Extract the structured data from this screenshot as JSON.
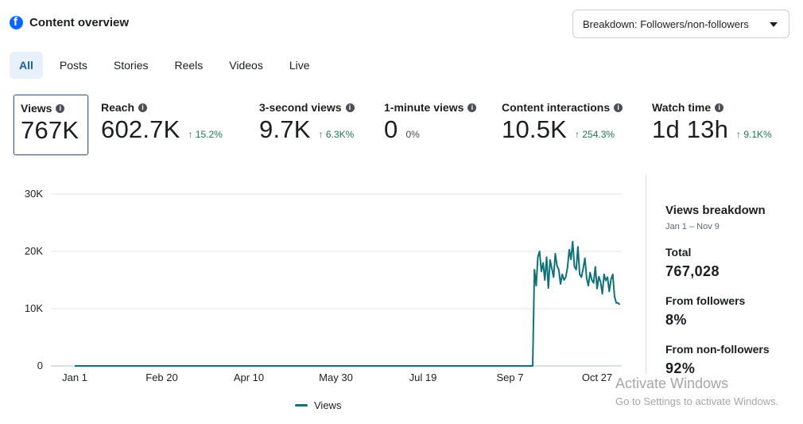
{
  "header": {
    "title": "Content overview",
    "icon": "facebook-icon",
    "brand_color": "#0866ff"
  },
  "breakdown": {
    "label": "Breakdown: Followers/non-followers"
  },
  "tabs": [
    {
      "label": "All",
      "active": true
    },
    {
      "label": "Posts"
    },
    {
      "label": "Stories"
    },
    {
      "label": "Reels"
    },
    {
      "label": "Videos"
    },
    {
      "label": "Live"
    }
  ],
  "metrics": [
    {
      "label": "Views",
      "value": "767K",
      "change": ""
    },
    {
      "label": "Reach",
      "value": "602.7K",
      "change": "↑ 15.2%"
    },
    {
      "label": "3-second views",
      "value": "9.7K",
      "change": "↑ 6.3K%"
    },
    {
      "label": "1-minute views",
      "value": "0",
      "change": "0%"
    },
    {
      "label": "Content interactions",
      "value": "10.5K",
      "change": "↑ 254.3%"
    },
    {
      "label": "Watch time",
      "value": "1d 13h",
      "change": "↑ 9.1K%"
    }
  ],
  "chart_data": {
    "type": "line",
    "title": "",
    "xlabel": "",
    "ylabel": "",
    "ylim": [
      0,
      30000
    ],
    "y_ticks": [
      "0",
      "10K",
      "20K",
      "30K"
    ],
    "x_ticks": [
      "Jan 1",
      "Feb 20",
      "Apr 10",
      "May 30",
      "Jul 19",
      "Sep 7",
      "Oct 27"
    ],
    "grid": true,
    "legend": "bottom",
    "line_color": "#0f7279",
    "series": [
      {
        "name": "Views",
        "x": [
          "2024-01-01",
          "2024-09-20",
          "2024-09-21",
          "2024-09-22",
          "2024-09-23",
          "2024-09-24",
          "2024-09-25",
          "2024-09-26",
          "2024-09-27",
          "2024-09-28",
          "2024-09-29",
          "2024-09-30",
          "2024-10-01",
          "2024-10-02",
          "2024-10-03",
          "2024-10-04",
          "2024-10-05",
          "2024-10-06",
          "2024-10-07",
          "2024-10-08",
          "2024-10-09",
          "2024-10-10",
          "2024-10-11",
          "2024-10-12",
          "2024-10-13",
          "2024-10-14",
          "2024-10-15",
          "2024-10-16",
          "2024-10-17",
          "2024-10-18",
          "2024-10-19",
          "2024-10-20",
          "2024-10-21",
          "2024-10-22",
          "2024-10-23",
          "2024-10-24",
          "2024-10-25",
          "2024-10-26",
          "2024-10-27",
          "2024-10-28",
          "2024-10-29",
          "2024-10-30",
          "2024-10-31",
          "2024-11-01",
          "2024-11-02",
          "2024-11-03",
          "2024-11-04",
          "2024-11-05",
          "2024-11-06",
          "2024-11-07",
          "2024-11-08",
          "2024-11-09"
        ],
        "values": [
          0,
          0,
          16800,
          14000,
          19000,
          20000,
          16500,
          18000,
          15000,
          19000,
          13600,
          18500,
          17000,
          15500,
          19600,
          17500,
          16800,
          14300,
          16000,
          15000,
          15500,
          17200,
          20300,
          18600,
          21700,
          17300,
          16800,
          20800,
          16000,
          15500,
          17000,
          18800,
          15300,
          14000,
          16300,
          15000,
          14500,
          17300,
          13500,
          15600,
          14700,
          12600,
          16000,
          14900,
          15500,
          13000,
          15100,
          16000,
          12200,
          11000,
          11000,
          10700
        ]
      }
    ]
  },
  "legend": {
    "label": "Views",
    "color": "#0f7279"
  },
  "side_panel": {
    "title": "Views breakdown",
    "date_range": "Jan 1 – Nov 9",
    "total_label": "Total",
    "total_value": "767,028",
    "followers_label": "From followers",
    "followers_value": "8%",
    "nonfollowers_label": "From non-followers",
    "nonfollowers_value": "92%"
  },
  "watermark": {
    "line1": "Activate Windows",
    "line2": "Go to Settings to activate Windows."
  }
}
